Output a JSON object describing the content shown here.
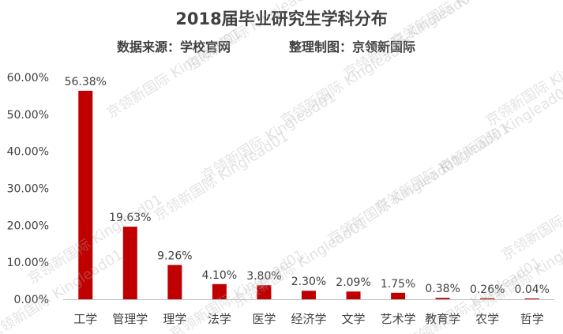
{
  "chart_data": {
    "type": "bar",
    "title": "2018届毕业研究生学科分布",
    "subtitle_source": "数据来源：学校官网",
    "subtitle_credit": "整理制图：京领新国际",
    "categories": [
      "工学",
      "管理学",
      "理学",
      "法学",
      "医学",
      "经济学",
      "文学",
      "艺术学",
      "教育学",
      "农学",
      "哲学"
    ],
    "values": [
      56.38,
      19.63,
      9.26,
      4.1,
      3.8,
      2.3,
      2.09,
      1.75,
      0.38,
      0.26,
      0.04
    ],
    "value_labels": [
      "56.38%",
      "19.63%",
      "9.26%",
      "4.10%",
      "3.80%",
      "2.30%",
      "2.09%",
      "1.75%",
      "0.38%",
      "0.26%",
      "0.04%"
    ],
    "y_ticks": [
      "0.00%",
      "10.00%",
      "20.00%",
      "30.00%",
      "40.00%",
      "50.00%",
      "60.00%"
    ],
    "ylim": [
      0,
      60
    ],
    "grid": false,
    "bar_color": "#C00000",
    "watermark": "京领新国际 Kinglead01"
  }
}
